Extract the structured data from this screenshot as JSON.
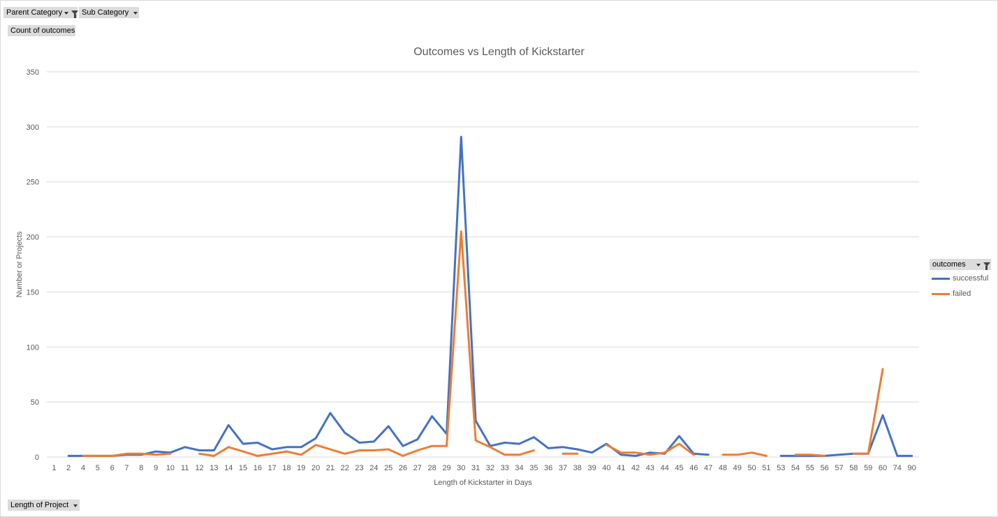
{
  "fields": {
    "parent_category": "Parent Category",
    "sub_category": "Sub Category",
    "values": "Count of outcomes",
    "axis_field": "Length of Project",
    "legend_field": "outcomes"
  },
  "chart_data": {
    "type": "line",
    "title": "Outcomes vs Length of Kickstarter",
    "xlabel": "Length  of Kickstarter in Days",
    "ylabel": "Number  or Projects",
    "ylim": [
      0,
      350
    ],
    "yticks": [
      0,
      50,
      100,
      150,
      200,
      250,
      300,
      350
    ],
    "grid": true,
    "legend_position": "right",
    "categories": [
      "1",
      "2",
      "4",
      "5",
      "6",
      "7",
      "8",
      "9",
      "10",
      "11",
      "12",
      "13",
      "14",
      "15",
      "16",
      "17",
      "18",
      "19",
      "20",
      "21",
      "22",
      "23",
      "24",
      "25",
      "26",
      "27",
      "28",
      "29",
      "30",
      "31",
      "32",
      "33",
      "34",
      "35",
      "36",
      "37",
      "38",
      "39",
      "40",
      "41",
      "42",
      "43",
      "44",
      "45",
      "46",
      "47",
      "48",
      "49",
      "50",
      "51",
      "53",
      "54",
      "55",
      "56",
      "57",
      "58",
      "59",
      "60",
      "74",
      "90"
    ],
    "series": [
      {
        "name": "successful",
        "color": "#4472c4",
        "values": [
          null,
          1,
          1,
          1,
          1,
          2,
          2,
          5,
          4,
          9,
          6,
          6,
          29,
          12,
          13,
          7,
          9,
          9,
          17,
          40,
          22,
          13,
          14,
          28,
          10,
          16,
          37,
          21,
          291,
          33,
          10,
          13,
          12,
          18,
          8,
          9,
          7,
          4,
          12,
          2,
          1,
          4,
          3,
          19,
          3,
          2,
          null,
          null,
          null,
          null,
          1,
          1,
          1,
          1,
          2,
          3,
          3,
          38,
          1,
          1
        ]
      },
      {
        "name": "failed",
        "color": "#ed7d31",
        "values": [
          null,
          null,
          1,
          1,
          1,
          3,
          3,
          2,
          3,
          null,
          3,
          1,
          9,
          5,
          1,
          3,
          5,
          2,
          11,
          7,
          3,
          6,
          6,
          7,
          1,
          6,
          10,
          10,
          205,
          15,
          9,
          2,
          2,
          6,
          null,
          3,
          3,
          null,
          11,
          4,
          4,
          2,
          4,
          12,
          2,
          null,
          2,
          2,
          4,
          1,
          null,
          2,
          2,
          1,
          null,
          3,
          3,
          80,
          null,
          null
        ]
      }
    ]
  }
}
